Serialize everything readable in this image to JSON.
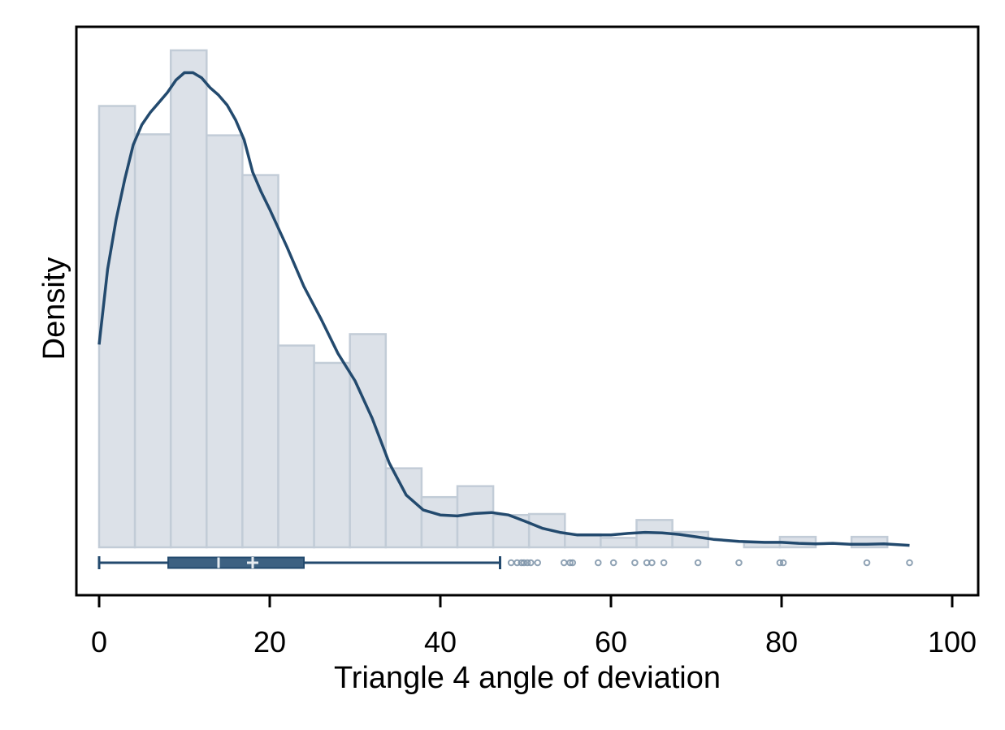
{
  "chart_data": {
    "type": "histogram",
    "xlabel": "Triangle 4 angle of deviation",
    "ylabel": "Density",
    "xlim": [
      -3,
      103
    ],
    "ylim": [
      0,
      1
    ],
    "x_ticks": [
      0,
      20,
      40,
      60,
      80,
      100
    ],
    "x_tick_labels": [
      "0",
      "20",
      "40",
      "60",
      "80",
      "100"
    ],
    "y_ticks_shown": false,
    "grid": false,
    "legend": "none",
    "colors": {
      "bar_fill": "#dce1e8",
      "bar_stroke": "#c2ccd7",
      "density_line": "#234a6e",
      "box_fill": "#3d6182",
      "box_line": "#234a6e",
      "outlier": "#7d93a8"
    },
    "histogram": {
      "bin_edges": [
        0,
        4.2,
        8.4,
        12.6,
        16.8,
        21.0,
        25.2,
        29.4,
        33.6,
        37.8,
        42.0,
        46.2,
        50.4,
        54.6,
        58.8,
        63.0,
        67.2,
        71.4,
        75.6,
        79.8,
        84.0,
        88.2,
        92.4
      ],
      "heights": [
        0.888,
        0.831,
        1.0,
        0.829,
        0.749,
        0.406,
        0.371,
        0.429,
        0.159,
        0.101,
        0.123,
        0.065,
        0.067,
        0.026,
        0.019,
        0.055,
        0.031,
        0.0,
        0.009,
        0.021,
        0.0,
        0.021
      ]
    },
    "density_curve": {
      "x": [
        0,
        1,
        2,
        3,
        4,
        5,
        6,
        7,
        8,
        9,
        10,
        11,
        12,
        13,
        14,
        15,
        16,
        17,
        18,
        19,
        20,
        22,
        24,
        26,
        28,
        30,
        32,
        34,
        36,
        38,
        40,
        42,
        44,
        46,
        48,
        50,
        52,
        54,
        56,
        58,
        60,
        62,
        64,
        66,
        68,
        70,
        72,
        75,
        78,
        80,
        82,
        84,
        86,
        88,
        90,
        92,
        95
      ],
      "y": [
        0.408,
        0.56,
        0.66,
        0.74,
        0.81,
        0.85,
        0.875,
        0.895,
        0.915,
        0.94,
        0.955,
        0.955,
        0.945,
        0.925,
        0.91,
        0.89,
        0.86,
        0.82,
        0.755,
        0.715,
        0.68,
        0.605,
        0.525,
        0.46,
        0.39,
        0.335,
        0.26,
        0.17,
        0.105,
        0.075,
        0.065,
        0.063,
        0.068,
        0.07,
        0.065,
        0.052,
        0.038,
        0.03,
        0.025,
        0.025,
        0.025,
        0.028,
        0.03,
        0.029,
        0.026,
        0.021,
        0.016,
        0.012,
        0.01,
        0.01,
        0.008,
        0.007,
        0.008,
        0.006,
        0.006,
        0.007,
        0.004
      ]
    },
    "boxplot": {
      "whisker_low": 0,
      "q1": 8.1,
      "median": 14.0,
      "mean": 18.0,
      "q3": 24.0,
      "whisker_high": 47.0,
      "outliers": [
        48.3,
        49.0,
        49.5,
        49.8,
        50.2,
        50.6,
        51.4,
        54.5,
        55.2,
        55.5,
        58.5,
        60.3,
        62.8,
        64.2,
        64.8,
        66.2,
        70.2,
        75.0,
        79.8,
        80.2,
        90.0,
        95.0
      ]
    }
  }
}
